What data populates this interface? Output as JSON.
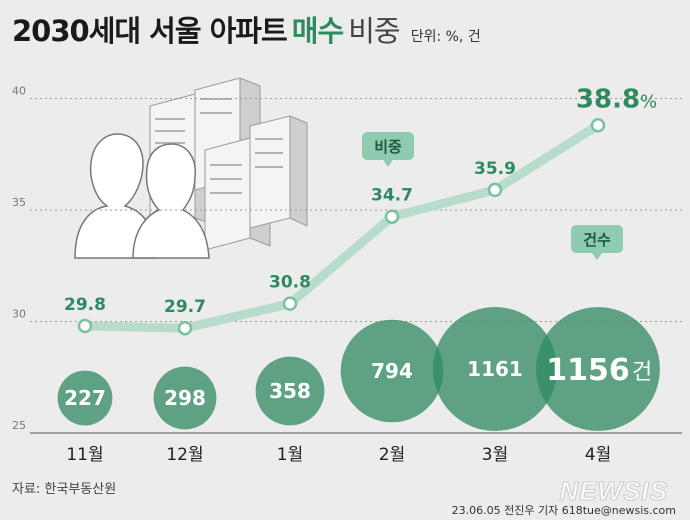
{
  "title": "2030세대 서울 아파트",
  "title_accent": "매수",
  "title_tail": "비중",
  "unit": "단위: %, 건",
  "source": "자료: 한국부동산원",
  "credit": "23.06.05 전진우 기자 618tue@newsis.com",
  "logo": "NEWSIS",
  "colors": {
    "line": "#b8dccb",
    "marker": "#7cc0a0",
    "bubble": "#2f8a60",
    "label": "#2f8a60",
    "value_text": "#ffffff"
  },
  "chart_data": {
    "type": "line",
    "categories": [
      "11월",
      "12월",
      "1월",
      "2월",
      "3월",
      "4월"
    ],
    "ylim": [
      25,
      42
    ],
    "yticks": [
      25,
      30,
      35,
      40
    ],
    "grid": true,
    "series": [
      {
        "name": "비중",
        "values": [
          29.8,
          29.7,
          30.8,
          34.7,
          35.9,
          38.8
        ]
      },
      {
        "name": "건수",
        "values": [
          227,
          298,
          358,
          794,
          1161,
          1156
        ]
      }
    ],
    "last_ratio_label": "38.8",
    "last_ratio_unit": "%",
    "last_count_unit": "건",
    "callout_ratio": "비중",
    "callout_count": "건수"
  }
}
